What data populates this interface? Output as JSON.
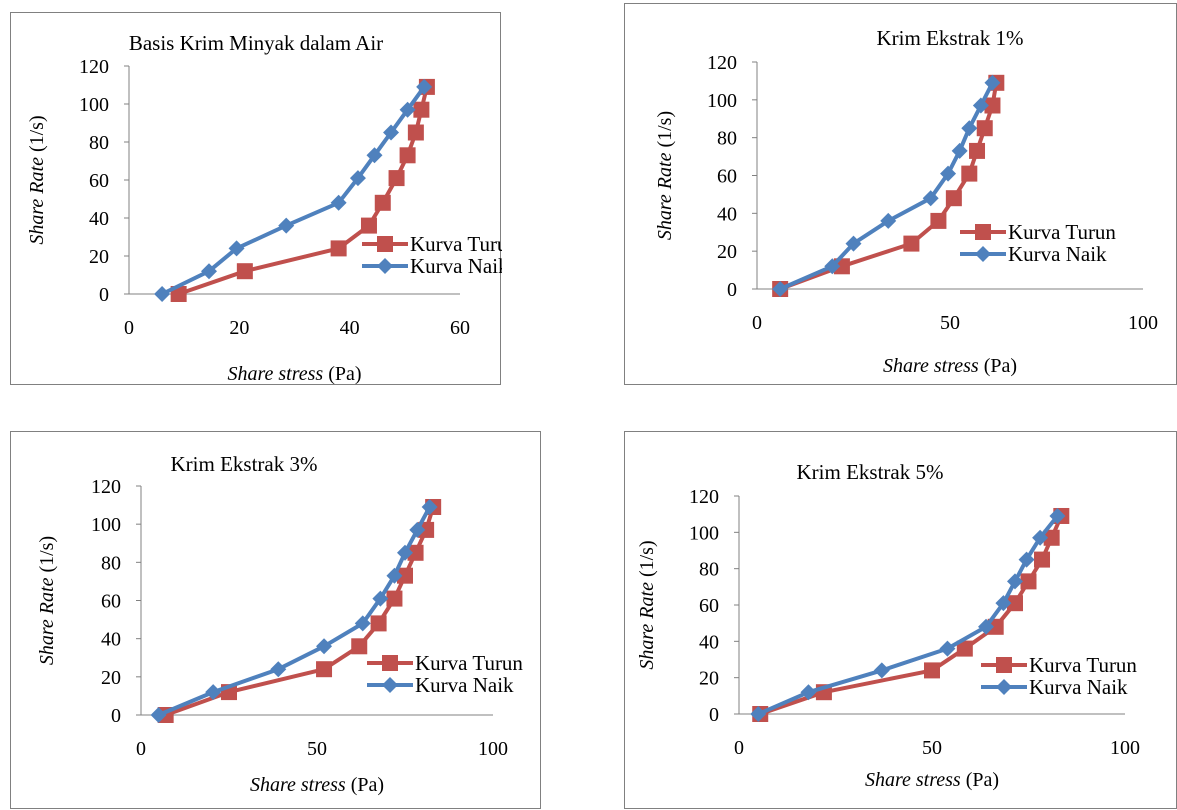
{
  "colors": {
    "turun": "#c0504d",
    "naik": "#4f81bd",
    "axis": "#808080",
    "border": "#808080"
  },
  "chart_data": [
    {
      "type": "line",
      "title": "Basis Krim Minyak dalam Air",
      "xlabel_italic": "Share stress",
      "xlabel_unit": "(Pa)",
      "ylabel_italic": "Share Rate",
      "ylabel_unit": "(1/s)",
      "xlim": [
        0,
        60
      ],
      "xticks": [
        0,
        20,
        40,
        60
      ],
      "ylim": [
        0,
        120
      ],
      "yticks": [
        0,
        20,
        40,
        60,
        80,
        100,
        120
      ],
      "legend_placement": "right",
      "series": [
        {
          "name": "Kurva Turun",
          "marker": "square",
          "x": [
            9,
            21,
            38,
            43.5,
            46,
            48.5,
            50.5,
            52,
            53,
            54
          ],
          "y": [
            0,
            12,
            24,
            36,
            48,
            61,
            73,
            85,
            97,
            109
          ]
        },
        {
          "name": "Kurva Naik",
          "marker": "diamond",
          "x": [
            6,
            14.5,
            19.5,
            28.5,
            38,
            41.5,
            44.5,
            47.5,
            50.5,
            53.5
          ],
          "y": [
            0,
            12,
            24,
            36,
            48,
            61,
            73,
            85,
            97,
            109
          ]
        }
      ]
    },
    {
      "type": "line",
      "title": "Krim Ekstrak 1%",
      "xlabel_italic": "Share stress",
      "xlabel_unit": "(Pa)",
      "ylabel_italic": "Share Rate",
      "ylabel_unit": "(1/s)",
      "xlim": [
        0,
        100
      ],
      "xticks": [
        0,
        50,
        100
      ],
      "ylim": [
        0,
        120
      ],
      "yticks": [
        0,
        20,
        40,
        60,
        80,
        100,
        120
      ],
      "legend_placement": "right",
      "series": [
        {
          "name": "Kurva Turun",
          "marker": "square",
          "x": [
            6,
            22,
            40,
            47,
            51,
            55,
            57,
            59,
            61,
            62
          ],
          "y": [
            0,
            12,
            24,
            36,
            48,
            61,
            73,
            85,
            97,
            109
          ]
        },
        {
          "name": "Kurva Naik",
          "marker": "diamond",
          "x": [
            6,
            19.5,
            25,
            34,
            45,
            49.5,
            52.5,
            55,
            58,
            61
          ],
          "y": [
            0,
            12,
            24,
            36,
            48,
            61,
            73,
            85,
            97,
            109
          ]
        }
      ]
    },
    {
      "type": "line",
      "title": "Krim Ekstrak 3%",
      "xlabel_italic": "Share stress",
      "xlabel_unit": "(Pa)",
      "ylabel_italic": "Share Rate",
      "ylabel_unit": "(1/s)",
      "xlim": [
        0,
        100
      ],
      "xticks": [
        0,
        50,
        100
      ],
      "ylim": [
        0,
        120
      ],
      "yticks": [
        0,
        20,
        40,
        60,
        80,
        100,
        120
      ],
      "legend_placement": "right",
      "series": [
        {
          "name": "Kurva Turun",
          "marker": "square",
          "x": [
            7,
            25,
            52,
            62,
            67.5,
            72,
            75,
            78,
            81,
            83
          ],
          "y": [
            0,
            12,
            24,
            36,
            48,
            61,
            73,
            85,
            97,
            109
          ]
        },
        {
          "name": "Kurva Naik",
          "marker": "diamond",
          "x": [
            5,
            20.5,
            39,
            52,
            63,
            68,
            72,
            75,
            78.5,
            82
          ],
          "y": [
            0,
            12,
            24,
            36,
            48,
            61,
            73,
            85,
            97,
            109
          ]
        }
      ]
    },
    {
      "type": "line",
      "title": "Krim Ekstrak 5%",
      "xlabel_italic": "Share stress",
      "xlabel_unit": "(Pa)",
      "ylabel_italic": "Share Rate",
      "ylabel_unit": "(1/s)",
      "xlim": [
        0,
        100
      ],
      "xticks": [
        0,
        50,
        100
      ],
      "ylim": [
        0,
        120
      ],
      "yticks": [
        0,
        20,
        40,
        60,
        80,
        100,
        120
      ],
      "legend_placement": "right",
      "series": [
        {
          "name": "Kurva Turun",
          "marker": "square",
          "x": [
            5.5,
            22,
            50,
            58.5,
            66.5,
            71.5,
            75,
            78.5,
            81,
            83.5
          ],
          "y": [
            0,
            12,
            24,
            36,
            48,
            61,
            73,
            85,
            97,
            109
          ]
        },
        {
          "name": "Kurva Naik",
          "marker": "diamond",
          "x": [
            5,
            18,
            37,
            54,
            64,
            68.5,
            71.5,
            74.5,
            78,
            82.5
          ],
          "y": [
            0,
            12,
            24,
            36,
            48,
            61,
            73,
            85,
            97,
            109
          ]
        }
      ]
    }
  ]
}
